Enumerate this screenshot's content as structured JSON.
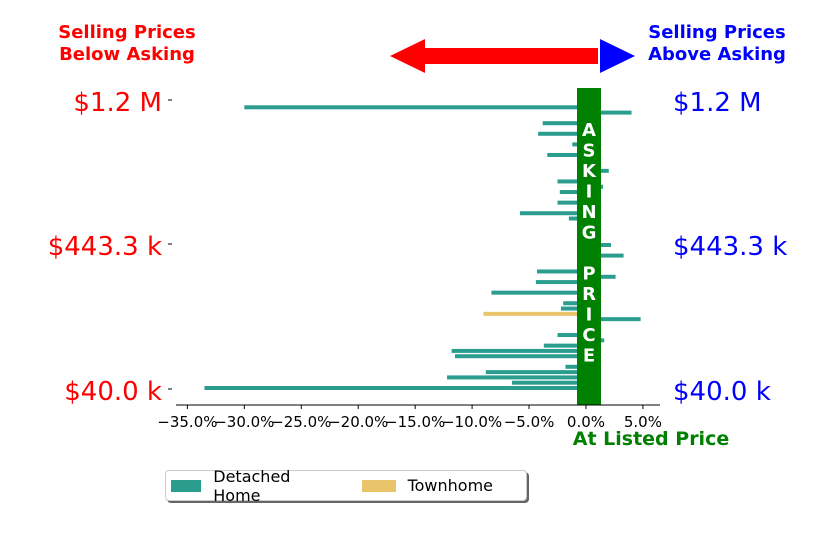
{
  "chart_data": {
    "type": "bar",
    "orientation": "horizontal",
    "xlim": [
      -0.36,
      0.065
    ],
    "x_ticks": [
      -0.35,
      -0.3,
      -0.25,
      -0.2,
      -0.15,
      -0.1,
      -0.05,
      0.0,
      0.05
    ],
    "x_tick_labels": [
      "−35.0%",
      "−30.0%",
      "−25.0%",
      "−20.0%",
      "−15.0%",
      "−10.0%",
      "−5.0%",
      "0.0%",
      "5.0%"
    ],
    "y_tick_labels_left": [
      "$1.2 M",
      "$443.3 k",
      "$40.0 k"
    ],
    "y_tick_labels_right": [
      "$1.2 M",
      "$443.3 k",
      "$40.0 k"
    ],
    "annotations": {
      "below_asking": [
        "Selling Prices",
        "Below Asking"
      ],
      "above_asking": [
        "Selling Prices",
        "Above Asking"
      ],
      "asking_price_letters": [
        "A",
        "S",
        "K",
        "I",
        "N",
        "G",
        "",
        "P",
        "R",
        "I",
        "C",
        "E"
      ],
      "at_listed_price": "At Listed Price"
    },
    "colors": {
      "detached": "#2a9d8f",
      "townhome": "#e9c46a",
      "below": "#ff0000",
      "above": "#0000ff",
      "asking_band": "#008000"
    },
    "series": [
      {
        "name": "Detached Home",
        "values": [
          0.012,
          -0.3,
          0.04,
          0.012,
          -0.038,
          0.012,
          -0.042,
          0.012,
          -0.012,
          0.012,
          -0.034,
          0.012,
          0.012,
          0.02,
          0.012,
          -0.025,
          0.015,
          -0.023,
          0.012,
          -0.025,
          0.012,
          -0.058,
          -0.015,
          0.012,
          0.012,
          0.012,
          0.012,
          0.022,
          0.012,
          0.033,
          0.012,
          0.012,
          -0.043,
          0.026,
          -0.044,
          0.012,
          -0.083,
          0.012,
          -0.02,
          -0.022,
          0.012,
          0.048,
          0.012,
          0.012,
          -0.025,
          0.016,
          -0.037,
          -0.118,
          -0.115,
          0.012,
          -0.018,
          -0.088,
          -0.122,
          -0.065,
          -0.335
        ]
      },
      {
        "name": "Townhome",
        "points": [
          {
            "index": 40,
            "value": -0.09
          }
        ]
      }
    ]
  }
}
